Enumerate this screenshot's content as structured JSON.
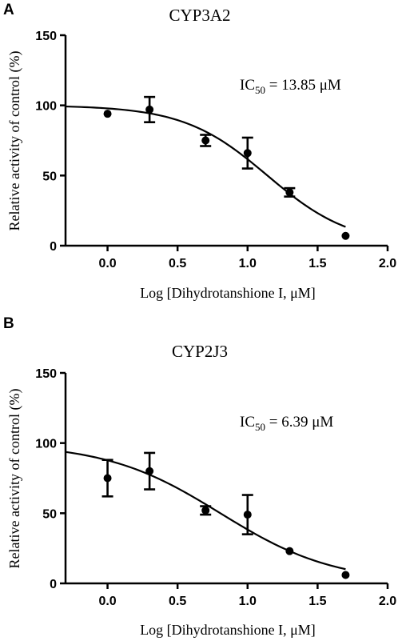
{
  "chart_data": [
    {
      "panel": "A",
      "type": "scatter",
      "title": "CYP3A2",
      "xlabel": "Log [Dihydrotanshione I, μM]",
      "ylabel": "Relative activity of control (%)",
      "xlim": [
        -0.3,
        2.0
      ],
      "ylim": [
        0,
        150
      ],
      "xticks": [
        0.0,
        0.5,
        1.0,
        1.5,
        2.0
      ],
      "xtick_labels": [
        "0.0",
        "0.5",
        "1.0",
        "1.5",
        "2.0"
      ],
      "yticks": [
        0,
        50,
        100,
        150
      ],
      "ytick_labels": [
        "0",
        "50",
        "100",
        "150"
      ],
      "annotation": {
        "prefix": "IC",
        "subscript": "50",
        "suffix": " = 13.85 μM"
      },
      "ic50_uM": 13.85,
      "fit": {
        "top": 100,
        "bottom": 0,
        "hill": 1.45
      },
      "points": [
        {
          "x": 0.0,
          "y": 94,
          "err": 0
        },
        {
          "x": 0.3,
          "y": 97,
          "err": 9
        },
        {
          "x": 0.7,
          "y": 75,
          "err": 4
        },
        {
          "x": 1.0,
          "y": 66,
          "err": 11
        },
        {
          "x": 1.3,
          "y": 38,
          "err": 3
        },
        {
          "x": 1.7,
          "y": 7,
          "err": 0
        }
      ]
    },
    {
      "panel": "B",
      "type": "scatter",
      "title": "CYP2J3",
      "xlabel": "Log [Dihydrotanshione I, μM]",
      "ylabel": "Relative activity of control (%)",
      "xlim": [
        -0.3,
        2.0
      ],
      "ylim": [
        0,
        150
      ],
      "xticks": [
        0.0,
        0.5,
        1.0,
        1.5,
        2.0
      ],
      "xtick_labels": [
        "0.0",
        "0.5",
        "1.0",
        "1.5",
        "2.0"
      ],
      "yticks": [
        0,
        50,
        100,
        150
      ],
      "ytick_labels": [
        "0",
        "50",
        "100",
        "150"
      ],
      "annotation": {
        "prefix": "IC",
        "subscript": "50",
        "suffix": " = 6.39 μM"
      },
      "ic50_uM": 6.39,
      "fit": {
        "top": 100,
        "bottom": 0,
        "hill": 1.06
      },
      "points": [
        {
          "x": 0.0,
          "y": 75,
          "err": 13
        },
        {
          "x": 0.3,
          "y": 80,
          "err": 13
        },
        {
          "x": 0.7,
          "y": 52,
          "err": 3
        },
        {
          "x": 1.0,
          "y": 49,
          "err": 14
        },
        {
          "x": 1.3,
          "y": 23,
          "err": 0
        },
        {
          "x": 1.7,
          "y": 6,
          "err": 0
        }
      ]
    }
  ]
}
